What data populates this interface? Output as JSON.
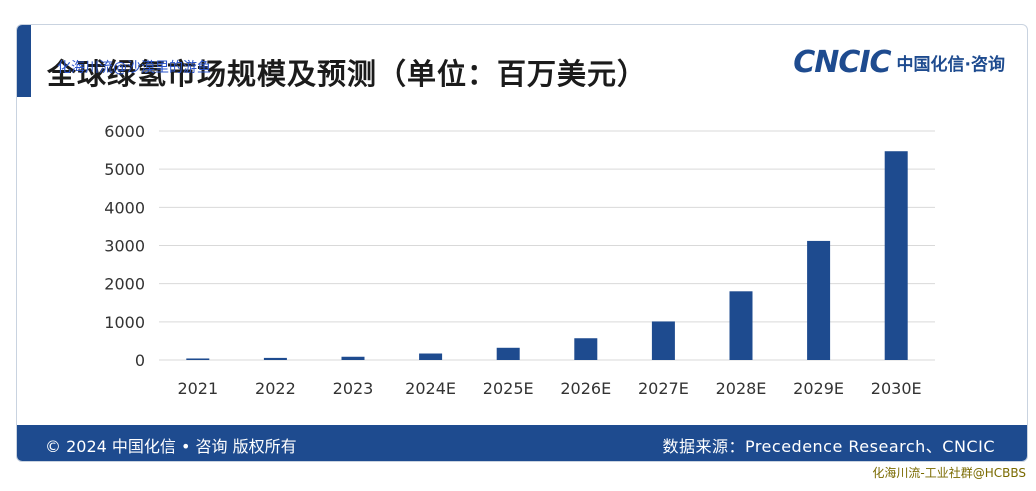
{
  "header": {
    "title": "全球绿氢市场规模及预测（单位：百万美元）",
    "watermark": "化海川流@沙漠里的游鱼",
    "logo_mark": "CNCIC",
    "logo_text": "中国化信·咨询"
  },
  "footer": {
    "copyright": "© 2024 中国化信 • 咨询  版权所有",
    "source": "数据来源：Precedence Research、CNCIC"
  },
  "watermark_bottom": "化海川流-工业社群@HCBBS",
  "colors": {
    "bar": "#1e4b8f",
    "grid": "#d9d9d9",
    "axis_text": "#333333"
  },
  "chart_data": {
    "type": "bar",
    "title": "全球绿氢市场规模及预测（单位：百万美元）",
    "categories": [
      "2021",
      "2022",
      "2023",
      "2024E",
      "2025E",
      "2026E",
      "2027E",
      "2028E",
      "2029E",
      "2030E"
    ],
    "values": [
      40,
      55,
      85,
      170,
      320,
      570,
      1010,
      1800,
      3120,
      5470
    ],
    "yticks": [
      0,
      1000,
      2000,
      3000,
      4000,
      5000,
      6000
    ],
    "ylim": [
      0,
      6000
    ],
    "grid": true,
    "xlabel": "",
    "ylabel": ""
  }
}
